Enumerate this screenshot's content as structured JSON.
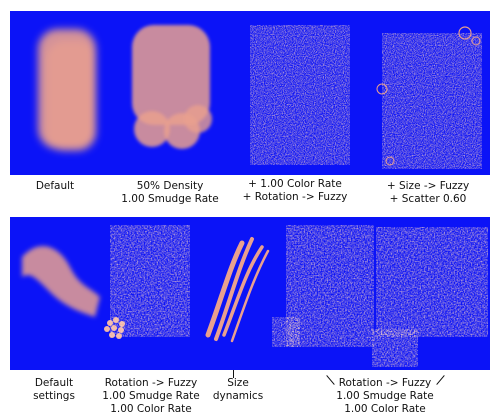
{
  "colors": {
    "canvas_bg": "#0b13f7",
    "stroke": "#e9a08f",
    "stroke_light": "#f1b6a6",
    "page_bg": "#ffffff"
  },
  "top_row": {
    "captions": [
      {
        "line1": "Default",
        "line2": ""
      },
      {
        "line1": "50% Density",
        "line2": "1.00 Smudge Rate"
      },
      {
        "line1": "+ 1.00 Color Rate",
        "line2": "+ Rotation -> Fuzzy"
      },
      {
        "line1": "+ Size -> Fuzzy",
        "line2": "+ Scatter 0.60"
      }
    ]
  },
  "bottom_row": {
    "captions": [
      {
        "line1": "Default",
        "line2": "settings",
        "line3": ""
      },
      {
        "line1": "Rotation -> Fuzzy",
        "line2": "1.00 Smudge Rate",
        "line3": "1.00 Color Rate"
      },
      {
        "line1": "Size",
        "line2": "dynamics",
        "line3": ""
      },
      {
        "line1": "Rotation -> Fuzzy",
        "line2": "1.00 Smudge Rate",
        "line3": "1.00 Color Rate"
      }
    ]
  }
}
